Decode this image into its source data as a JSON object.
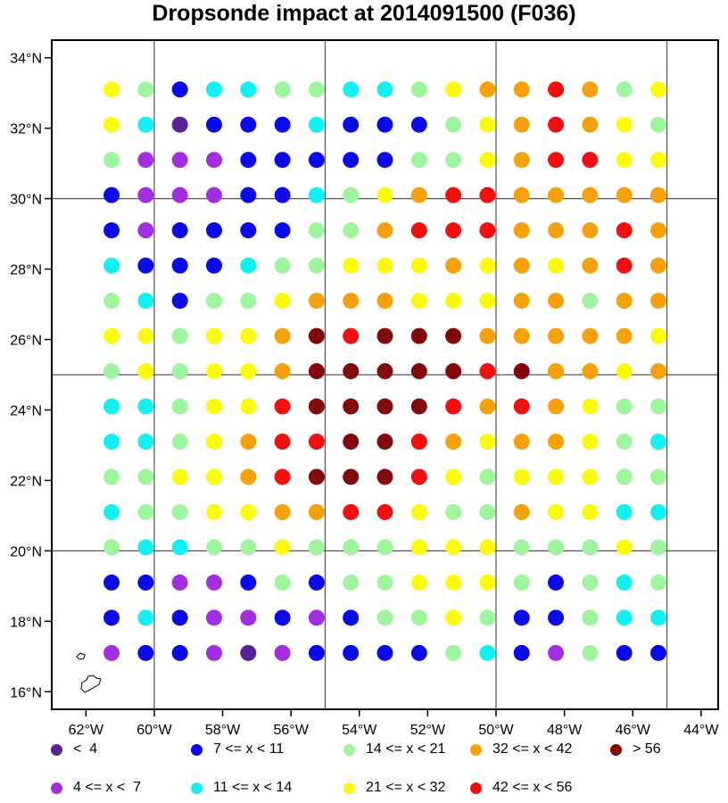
{
  "title": "Dropsonde impact at 2014091500 (F036)",
  "chart_data": {
    "type": "scatter",
    "xlim": [
      -63,
      -43.5
    ],
    "ylim": [
      15.5,
      34.5
    ],
    "x_ticks": [
      {
        "value": -62,
        "label": "62°W"
      },
      {
        "value": -60,
        "label": "60°W"
      },
      {
        "value": -58,
        "label": "58°W"
      },
      {
        "value": -56,
        "label": "56°W"
      },
      {
        "value": -54,
        "label": "54°W"
      },
      {
        "value": -52,
        "label": "52°W"
      },
      {
        "value": -50,
        "label": "50°W"
      },
      {
        "value": -48,
        "label": "48°W"
      },
      {
        "value": -46,
        "label": "46°W"
      },
      {
        "value": -44,
        "label": "44°W"
      }
    ],
    "y_ticks": [
      {
        "value": 16,
        "label": "16°N"
      },
      {
        "value": 18,
        "label": "18°N"
      },
      {
        "value": 20,
        "label": "20°N"
      },
      {
        "value": 22,
        "label": "22°N"
      },
      {
        "value": 24,
        "label": "24°N"
      },
      {
        "value": 26,
        "label": "26°N"
      },
      {
        "value": 28,
        "label": "28°N"
      },
      {
        "value": 30,
        "label": "30°N"
      },
      {
        "value": 32,
        "label": "32°N"
      },
      {
        "value": 34,
        "label": "34°N"
      }
    ],
    "grid_lon": [
      -60,
      -55,
      -50,
      -45
    ],
    "grid_lat": [
      20,
      25,
      30
    ],
    "lons": [
      -61.25,
      -60.25,
      -59.25,
      -58.25,
      -57.25,
      -56.25,
      -55.25,
      -54.25,
      -53.25,
      -52.25,
      -51.25,
      -50.25,
      -49.25,
      -48.25,
      -47.25,
      -46.25,
      -45.25
    ],
    "lats": [
      33.1,
      32.1,
      31.1,
      30.1,
      29.1,
      28.1,
      27.1,
      26.1,
      25.1,
      24.1,
      23.1,
      22.1,
      21.1,
      20.1,
      19.1,
      18.1,
      17.1
    ],
    "category_codes": "0: < 4 | 1: 4-7 | 2: 7-11 | 3: 11-14 | 4: 14-21 | 5: 21-32 | 6: 32-42 | 7: 42-56 | 8: > 56",
    "grid": [
      [
        5,
        4,
        2,
        3,
        3,
        4,
        4,
        3,
        3,
        4,
        5,
        6,
        6,
        7,
        6,
        4,
        5
      ],
      [
        5,
        3,
        0,
        2,
        2,
        2,
        3,
        2,
        2,
        2,
        4,
        5,
        6,
        7,
        6,
        5,
        4
      ],
      [
        4,
        1,
        1,
        1,
        2,
        2,
        2,
        2,
        2,
        4,
        4,
        5,
        6,
        7,
        7,
        5,
        5
      ],
      [
        2,
        1,
        1,
        1,
        2,
        2,
        3,
        4,
        5,
        6,
        7,
        7,
        6,
        6,
        6,
        6,
        6
      ],
      [
        2,
        1,
        2,
        2,
        2,
        2,
        4,
        4,
        6,
        7,
        7,
        7,
        6,
        6,
        6,
        7,
        6
      ],
      [
        3,
        2,
        2,
        2,
        3,
        4,
        4,
        5,
        5,
        5,
        6,
        5,
        6,
        5,
        6,
        7,
        6
      ],
      [
        4,
        3,
        2,
        4,
        4,
        5,
        6,
        6,
        6,
        5,
        5,
        5,
        6,
        6,
        4,
        6,
        6
      ],
      [
        5,
        5,
        4,
        5,
        5,
        6,
        8,
        7,
        8,
        8,
        8,
        6,
        6,
        6,
        6,
        6,
        5
      ],
      [
        4,
        5,
        4,
        5,
        5,
        6,
        8,
        8,
        8,
        8,
        8,
        7,
        8,
        6,
        6,
        5,
        6
      ],
      [
        3,
        3,
        4,
        5,
        5,
        7,
        8,
        8,
        8,
        8,
        7,
        6,
        7,
        6,
        5,
        4,
        4
      ],
      [
        3,
        3,
        4,
        5,
        6,
        7,
        7,
        8,
        8,
        7,
        6,
        5,
        6,
        6,
        5,
        4,
        3
      ],
      [
        4,
        4,
        5,
        5,
        6,
        7,
        8,
        8,
        8,
        7,
        5,
        4,
        5,
        5,
        5,
        4,
        4
      ],
      [
        3,
        4,
        4,
        5,
        5,
        6,
        6,
        7,
        7,
        5,
        4,
        4,
        6,
        5,
        5,
        3,
        3
      ],
      [
        4,
        3,
        3,
        4,
        4,
        5,
        4,
        4,
        4,
        5,
        5,
        5,
        4,
        4,
        4,
        5,
        4
      ],
      [
        2,
        2,
        1,
        1,
        2,
        4,
        2,
        4,
        4,
        5,
        5,
        5,
        4,
        2,
        4,
        3,
        4
      ],
      [
        2,
        3,
        2,
        1,
        1,
        2,
        1,
        2,
        4,
        4,
        5,
        4,
        2,
        2,
        4,
        3,
        3
      ],
      [
        1,
        2,
        2,
        1,
        0,
        1,
        2,
        2,
        2,
        2,
        4,
        3,
        2,
        1,
        4,
        2,
        2
      ]
    ],
    "categories": [
      {
        "label": "<  4",
        "color": "#5b2296"
      },
      {
        "label": "4 <= x <  7",
        "color": "#a22ee0"
      },
      {
        "label": "7 <= x < 11",
        "color": "#0b0bea"
      },
      {
        "label": "11 <= x < 14",
        "color": "#12f1f1"
      },
      {
        "label": "14 <= x < 21",
        "color": "#9ef59e"
      },
      {
        "label": "21 <= x < 32",
        "color": "#fafa0a"
      },
      {
        "label": "32 <= x < 42",
        "color": "#f6a10a"
      },
      {
        "label": "42 <= x < 56",
        "color": "#f20f0f"
      },
      {
        "label": "> 56",
        "color": "#820a0a"
      }
    ]
  }
}
